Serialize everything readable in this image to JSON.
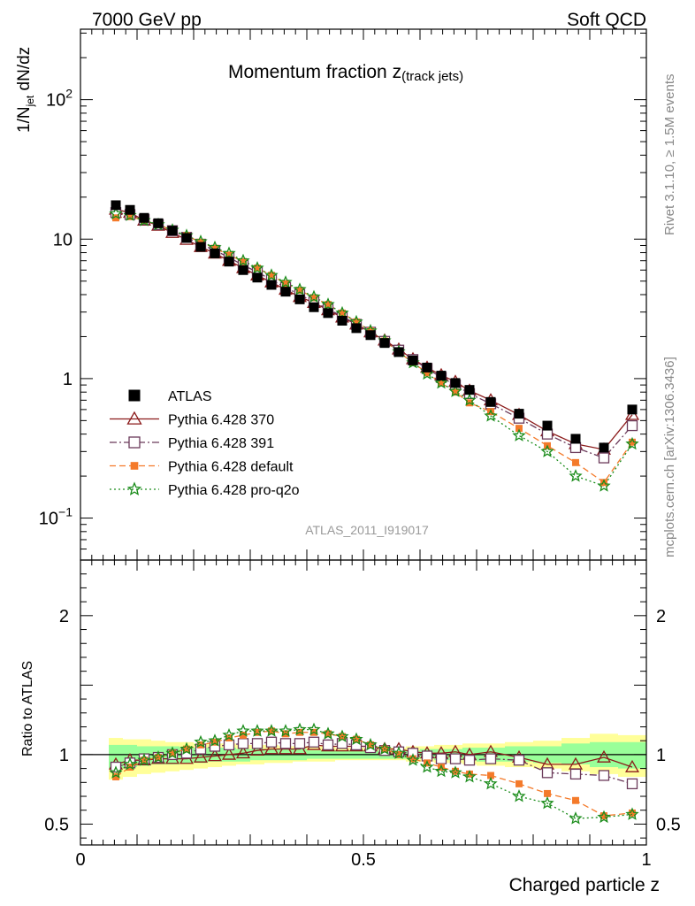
{
  "header": {
    "left": "7000 GeV pp",
    "right": "Soft QCD"
  },
  "side_labels": {
    "rivet": "Rivet 3.1.10, ≥ 1.5M events",
    "mcplots": "mcplots.cern.ch [arXiv:1306.3436]"
  },
  "chart_data": [
    {
      "type": "line",
      "title_main": "Momentum fraction z",
      "title_sub": "(track jets)",
      "xlabel": "Charged particle z",
      "ylabel_main": "1/N",
      "ylabel_sub": "jet",
      "ylabel_tail": " dN/dz",
      "yscale": "log",
      "xlim": [
        0,
        1
      ],
      "ylim": [
        0.05,
        320
      ],
      "x_ticks": [
        0,
        0.5,
        1
      ],
      "y_ticks": [
        {
          "value": 0.1,
          "base": "10",
          "exp": "−1"
        },
        {
          "value": 1,
          "label": "1"
        },
        {
          "value": 10,
          "label": "10"
        },
        {
          "value": 100,
          "base": "10",
          "exp": "2"
        }
      ],
      "analysis_label": "ATLAS_2011_I919017",
      "legend_position": "lower-left",
      "x": [
        0.0625,
        0.0875,
        0.1125,
        0.1375,
        0.1625,
        0.1875,
        0.2125,
        0.2375,
        0.2625,
        0.2875,
        0.3125,
        0.3375,
        0.3625,
        0.3875,
        0.4125,
        0.4375,
        0.4625,
        0.4875,
        0.5125,
        0.5375,
        0.5625,
        0.5875,
        0.6125,
        0.6375,
        0.6625,
        0.6875,
        0.725,
        0.775,
        0.825,
        0.875,
        0.925,
        0.975
      ],
      "series": [
        {
          "name": "ATLAS",
          "color": "#000000",
          "marker": "square-filled",
          "line": "none",
          "values": [
            17.5,
            16.2,
            14.2,
            13.0,
            11.5,
            10.2,
            8.8,
            7.9,
            6.9,
            6.0,
            5.3,
            4.7,
            4.2,
            3.7,
            3.25,
            2.95,
            2.6,
            2.3,
            2.05,
            1.8,
            1.55,
            1.35,
            1.2,
            1.05,
            0.93,
            0.83,
            0.68,
            0.56,
            0.46,
            0.37,
            0.32,
            0.6
          ]
        },
        {
          "name": "Pythia 6.428 370",
          "color": "#8b1a1a",
          "marker": "triangle-open",
          "line": "solid",
          "values": [
            16.3,
            15.5,
            13.6,
            12.5,
            11.1,
            9.9,
            8.8,
            7.9,
            7.0,
            6.2,
            5.5,
            4.9,
            4.35,
            3.85,
            3.5,
            3.1,
            2.75,
            2.45,
            2.15,
            1.88,
            1.62,
            1.38,
            1.2,
            1.06,
            0.95,
            0.82,
            0.7,
            0.55,
            0.42,
            0.34,
            0.31,
            0.55
          ]
        },
        {
          "name": "Pythia 6.428 391",
          "color": "#6b3a5a",
          "marker": "square-open",
          "line": "dashdot",
          "values": [
            15.5,
            15.0,
            13.8,
            12.7,
            11.5,
            10.3,
            9.2,
            8.3,
            7.4,
            6.5,
            5.8,
            5.1,
            4.5,
            4.0,
            3.55,
            3.15,
            2.8,
            2.45,
            2.15,
            1.85,
            1.6,
            1.37,
            1.18,
            1.02,
            0.9,
            0.78,
            0.66,
            0.52,
            0.4,
            0.32,
            0.27,
            0.46
          ]
        },
        {
          "name": "Pythia 6.428 default",
          "color": "#f47a2a",
          "marker": "square-filled-small",
          "line": "dashed",
          "values": [
            14.2,
            14.5,
            13.6,
            12.7,
            11.6,
            10.6,
            9.5,
            8.6,
            7.7,
            6.9,
            6.2,
            5.5,
            4.8,
            4.3,
            3.8,
            3.4,
            2.95,
            2.55,
            2.2,
            1.86,
            1.55,
            1.3,
            1.1,
            0.93,
            0.8,
            0.67,
            0.58,
            0.44,
            0.33,
            0.25,
            0.18,
            0.35
          ]
        },
        {
          "name": "Pythia 6.428 pro-q2o",
          "color": "#1a8c1a",
          "marker": "star-open",
          "line": "dotted",
          "values": [
            15.2,
            14.8,
            13.6,
            12.7,
            11.6,
            10.6,
            9.6,
            8.7,
            7.9,
            7.0,
            6.2,
            5.5,
            4.9,
            4.35,
            3.85,
            3.4,
            2.95,
            2.55,
            2.2,
            1.87,
            1.56,
            1.3,
            1.08,
            0.93,
            0.81,
            0.7,
            0.54,
            0.39,
            0.3,
            0.2,
            0.17,
            0.34
          ]
        }
      ]
    },
    {
      "type": "line",
      "ylabel": "Ratio to ATLAS",
      "xlabel": "Charged particle z",
      "xlim": [
        0,
        1
      ],
      "ylim": [
        0.35,
        2.4
      ],
      "y_ticks": [
        0.5,
        1,
        2
      ],
      "x_ticks": [
        0,
        0.5,
        1
      ],
      "band_outer_color": "#ffff99",
      "band_inner_color": "#99ff99",
      "band_edges": [
        0.05,
        0.075,
        0.1,
        0.125,
        0.15,
        0.175,
        0.2,
        0.225,
        0.25,
        0.275,
        0.3,
        0.325,
        0.35,
        0.375,
        0.4,
        0.425,
        0.45,
        0.475,
        0.5,
        0.525,
        0.55,
        0.575,
        0.6,
        0.625,
        0.65,
        0.675,
        0.7,
        0.75,
        0.8,
        0.85,
        0.9,
        0.95,
        1.0
      ],
      "band_outer": [
        [
          0.82,
          1.12
        ],
        [
          0.84,
          1.11
        ],
        [
          0.86,
          1.11
        ],
        [
          0.87,
          1.1
        ],
        [
          0.88,
          1.09
        ],
        [
          0.89,
          1.09
        ],
        [
          0.9,
          1.08
        ],
        [
          0.91,
          1.08
        ],
        [
          0.92,
          1.08
        ],
        [
          0.93,
          1.07
        ],
        [
          0.93,
          1.07
        ],
        [
          0.94,
          1.07
        ],
        [
          0.94,
          1.06
        ],
        [
          0.95,
          1.06
        ],
        [
          0.95,
          1.06
        ],
        [
          0.95,
          1.06
        ],
        [
          0.96,
          1.05
        ],
        [
          0.96,
          1.05
        ],
        [
          0.96,
          1.05
        ],
        [
          0.96,
          1.05
        ],
        [
          0.96,
          1.05
        ],
        [
          0.95,
          1.06
        ],
        [
          0.95,
          1.06
        ],
        [
          0.94,
          1.07
        ],
        [
          0.94,
          1.07
        ],
        [
          0.93,
          1.08
        ],
        [
          0.92,
          1.08
        ],
        [
          0.91,
          1.09
        ],
        [
          0.9,
          1.1
        ],
        [
          0.88,
          1.12
        ],
        [
          0.86,
          1.15
        ],
        [
          0.84,
          1.14
        ]
      ],
      "band_inner": [
        [
          0.9,
          1.07
        ],
        [
          0.91,
          1.07
        ],
        [
          0.92,
          1.06
        ],
        [
          0.93,
          1.06
        ],
        [
          0.93,
          1.06
        ],
        [
          0.94,
          1.05
        ],
        [
          0.94,
          1.05
        ],
        [
          0.95,
          1.05
        ],
        [
          0.95,
          1.05
        ],
        [
          0.95,
          1.04
        ],
        [
          0.96,
          1.04
        ],
        [
          0.96,
          1.04
        ],
        [
          0.96,
          1.04
        ],
        [
          0.96,
          1.04
        ],
        [
          0.97,
          1.03
        ],
        [
          0.97,
          1.03
        ],
        [
          0.97,
          1.03
        ],
        [
          0.97,
          1.03
        ],
        [
          0.97,
          1.03
        ],
        [
          0.97,
          1.03
        ],
        [
          0.97,
          1.03
        ],
        [
          0.97,
          1.03
        ],
        [
          0.97,
          1.04
        ],
        [
          0.96,
          1.04
        ],
        [
          0.96,
          1.04
        ],
        [
          0.96,
          1.05
        ],
        [
          0.95,
          1.05
        ],
        [
          0.95,
          1.06
        ],
        [
          0.94,
          1.06
        ],
        [
          0.93,
          1.08
        ],
        [
          0.91,
          1.09
        ],
        [
          0.9,
          1.09
        ]
      ],
      "series": [
        {
          "name": "Pythia 6.428 370",
          "color": "#8b1a1a",
          "marker": "triangle-open",
          "line": "solid",
          "values": [
            0.93,
            0.96,
            0.96,
            0.97,
            0.97,
            0.97,
            0.98,
            0.99,
            1.0,
            1.01,
            1.03,
            1.04,
            1.04,
            1.04,
            1.07,
            1.06,
            1.06,
            1.06,
            1.06,
            1.04,
            1.04,
            1.02,
            1.01,
            1.01,
            1.02,
            1.0,
            1.02,
            0.98,
            0.93,
            0.93,
            0.98,
            0.91
          ]
        },
        {
          "name": "Pythia 6.428 391",
          "color": "#6b3a5a",
          "marker": "square-open",
          "line": "dashdot",
          "values": [
            0.91,
            0.94,
            0.97,
            0.98,
            1.0,
            1.01,
            1.04,
            1.06,
            1.07,
            1.08,
            1.08,
            1.09,
            1.08,
            1.08,
            1.09,
            1.07,
            1.08,
            1.07,
            1.05,
            1.03,
            1.02,
            1.01,
            0.99,
            0.97,
            0.97,
            0.96,
            0.97,
            0.96,
            0.87,
            0.86,
            0.85,
            0.79
          ]
        },
        {
          "name": "Pythia 6.428 default",
          "color": "#f47a2a",
          "marker": "square-filled-small",
          "line": "dashed",
          "values": [
            0.84,
            0.91,
            0.96,
            0.98,
            1.01,
            1.04,
            1.07,
            1.09,
            1.12,
            1.14,
            1.16,
            1.17,
            1.15,
            1.16,
            1.16,
            1.15,
            1.13,
            1.11,
            1.07,
            1.04,
            1.0,
            0.97,
            0.94,
            0.91,
            0.88,
            0.86,
            0.85,
            0.79,
            0.72,
            0.67,
            0.56,
            0.58
          ]
        },
        {
          "name": "Pythia 6.428 pro-q2o",
          "color": "#1a8c1a",
          "marker": "star-open",
          "line": "dotted",
          "values": [
            0.87,
            0.93,
            0.96,
            0.98,
            1.01,
            1.04,
            1.09,
            1.1,
            1.14,
            1.17,
            1.17,
            1.17,
            1.17,
            1.18,
            1.18,
            1.15,
            1.13,
            1.11,
            1.07,
            1.04,
            1.01,
            0.96,
            0.91,
            0.88,
            0.87,
            0.84,
            0.79,
            0.7,
            0.65,
            0.54,
            0.55,
            0.57
          ]
        }
      ]
    }
  ]
}
